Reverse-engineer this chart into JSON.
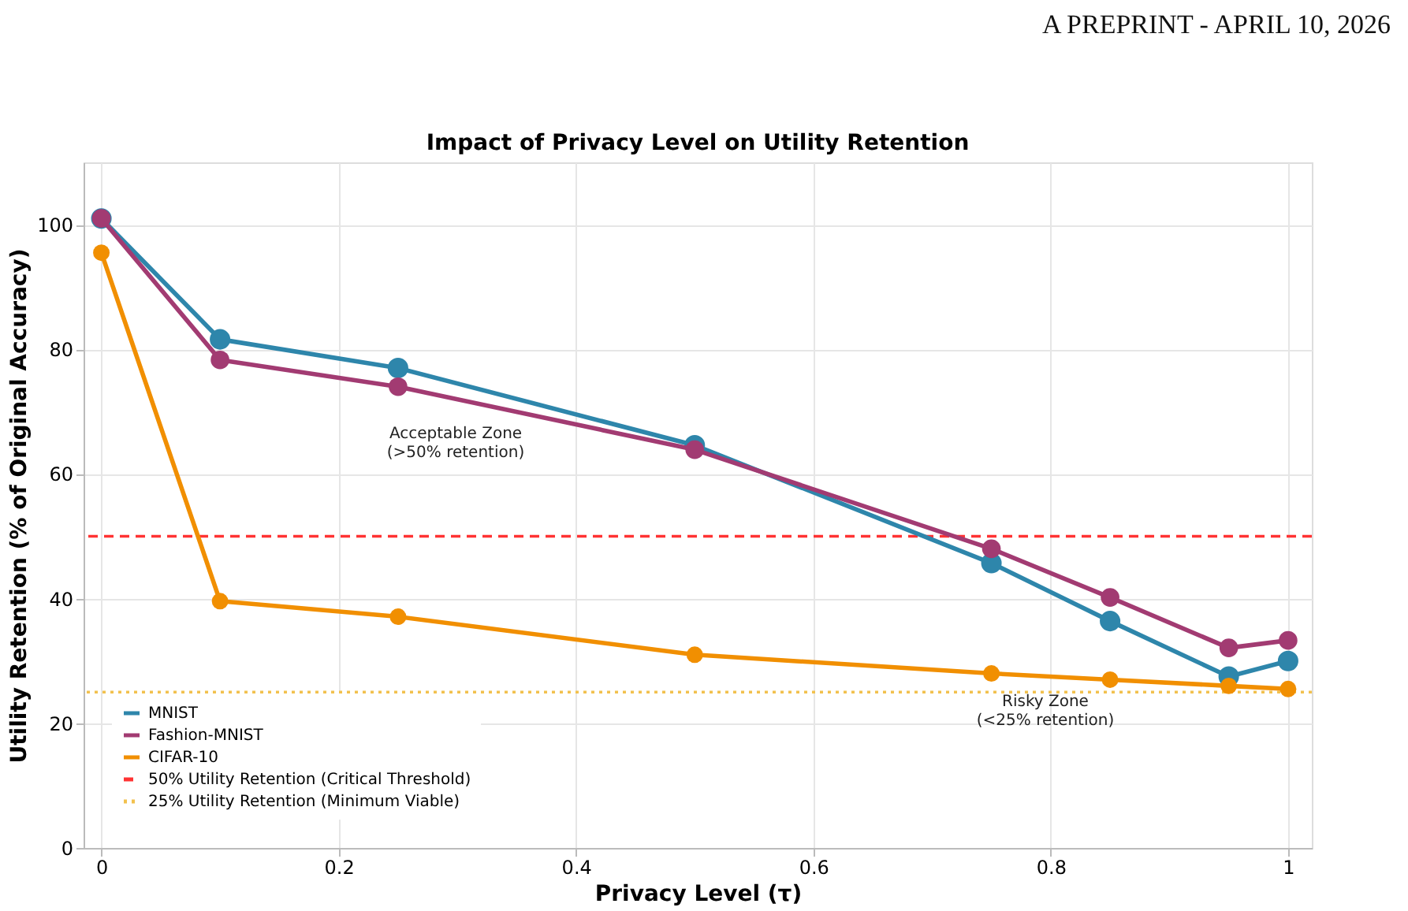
{
  "chart_data": {
    "type": "line",
    "title": "Impact of Privacy Level on Utility Retention",
    "xlabel": "Privacy Level (τ)",
    "ylabel": "Utility Retention (% of Original Accuracy)",
    "x": [
      0,
      0.1,
      0.25,
      0.5,
      0.75,
      0.85,
      0.95,
      1.0
    ],
    "series": [
      {
        "name": "MNIST",
        "color": "#2e86ab",
        "values": [
          101,
          81.6,
          77,
          64.6,
          45.7,
          36.4,
          27.5,
          30
        ]
      },
      {
        "name": "Fashion-MNIST",
        "color": "#a23b72",
        "values": [
          101,
          78.3,
          74,
          63.9,
          48,
          40.2,
          32.1,
          33.3
        ]
      },
      {
        "name": "CIFAR-10",
        "color": "#f18f01",
        "values": [
          95.5,
          39.6,
          37.1,
          31,
          28,
          27,
          26,
          25.5
        ]
      }
    ],
    "ref_lines": [
      {
        "axis": "y",
        "value": 50,
        "label": "50% Utility Retention (Critical Threshold)",
        "color": "#ff3333",
        "line_style": "dashed"
      },
      {
        "axis": "y",
        "value": 25,
        "label": "25% Utility Retention (Minimum Viable)",
        "color": "#f2c14e",
        "line_style": "dotted"
      }
    ],
    "annotations": [
      "Acceptable Zone\n(>50% retention)",
      "Risky Zone\n(<25% retention)",
      "A PREPRINT - APRIL 10, 2026"
    ],
    "xlim": [
      -0.015,
      1.02
    ],
    "xticks": [
      0,
      0.2,
      0.4,
      0.6,
      0.8,
      1.0
    ],
    "ylim": [
      0,
      110
    ],
    "yticks": [
      0,
      20,
      40,
      60,
      80,
      100
    ],
    "grid": true,
    "legend": "bottom left",
    "marker": "circle",
    "line_style": "solid"
  }
}
